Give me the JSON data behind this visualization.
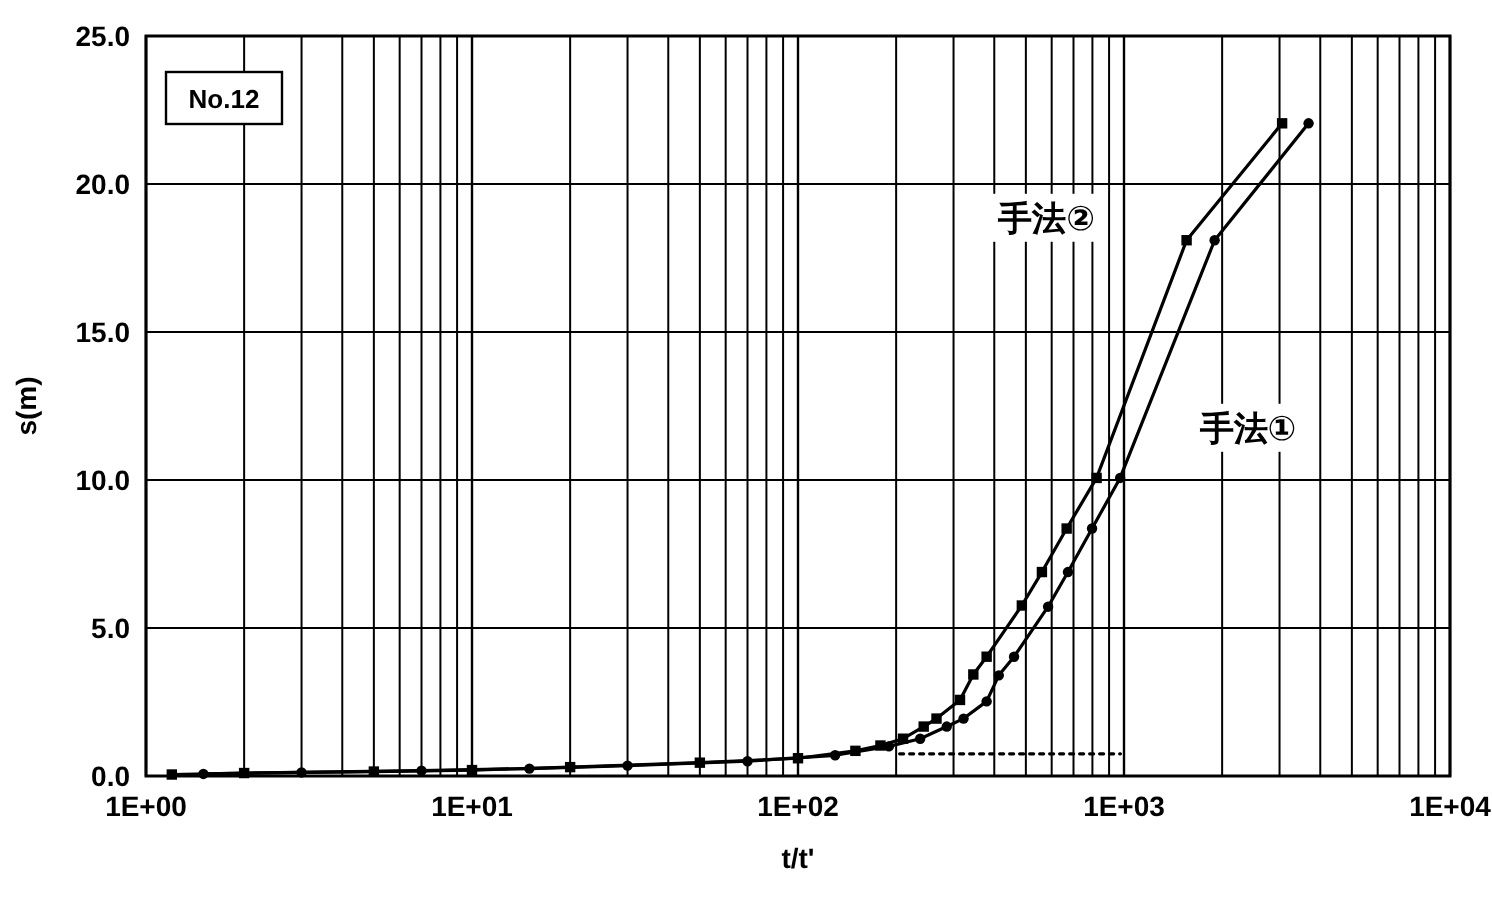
{
  "chart_data": {
    "type": "line",
    "xlabel": "t/t'",
    "ylabel": "s(m)",
    "log": "x",
    "grid": true,
    "xlim": [
      1,
      10000
    ],
    "ylim": [
      0,
      25
    ],
    "xticks": [
      {
        "value": 1,
        "label": "1E+00"
      },
      {
        "value": 2,
        "label": null
      },
      {
        "value": 3,
        "label": null
      },
      {
        "value": 4,
        "label": null
      },
      {
        "value": 5,
        "label": null
      },
      {
        "value": 6,
        "label": null
      },
      {
        "value": 7,
        "label": null
      },
      {
        "value": 8,
        "label": null
      },
      {
        "value": 9,
        "label": null
      },
      {
        "value": 10,
        "label": "1E+01"
      },
      {
        "value": 20,
        "label": null
      },
      {
        "value": 30,
        "label": null
      },
      {
        "value": 40,
        "label": null
      },
      {
        "value": 50,
        "label": null
      },
      {
        "value": 60,
        "label": null
      },
      {
        "value": 70,
        "label": null
      },
      {
        "value": 80,
        "label": null
      },
      {
        "value": 90,
        "label": null
      },
      {
        "value": 100,
        "label": "1E+02"
      },
      {
        "value": 200,
        "label": null
      },
      {
        "value": 300,
        "label": null
      },
      {
        "value": 400,
        "label": null
      },
      {
        "value": 500,
        "label": null
      },
      {
        "value": 600,
        "label": null
      },
      {
        "value": 700,
        "label": null
      },
      {
        "value": 800,
        "label": null
      },
      {
        "value": 900,
        "label": null
      },
      {
        "value": 1000,
        "label": "1E+03"
      },
      {
        "value": 2000,
        "label": null
      },
      {
        "value": 3000,
        "label": null
      },
      {
        "value": 4000,
        "label": null
      },
      {
        "value": 5000,
        "label": null
      },
      {
        "value": 6000,
        "label": null
      },
      {
        "value": 7000,
        "label": null
      },
      {
        "value": 8000,
        "label": null
      },
      {
        "value": 9000,
        "label": null
      },
      {
        "value": 10000,
        "label": "1E+04"
      }
    ],
    "yticks": [
      {
        "value": 0,
        "label": "0.0"
      },
      {
        "value": 5,
        "label": "5.0"
      },
      {
        "value": 10,
        "label": "10.0"
      },
      {
        "value": 15,
        "label": "15.0"
      },
      {
        "value": 20,
        "label": "20.0"
      },
      {
        "value": 25,
        "label": "25.0"
      }
    ],
    "annotations": [
      "No.12"
    ],
    "series": [
      {
        "name": "手法①",
        "color": "#000000",
        "marker": "circle",
        "x": [
          1.5,
          3,
          7,
          15,
          30,
          70,
          130,
          190,
          237,
          286,
          322,
          379,
          413,
          460,
          585,
          673,
          798,
          973,
          1897,
          3683
        ],
        "values": [
          0.07,
          0.12,
          0.18,
          0.25,
          0.35,
          0.5,
          0.7,
          1.0,
          1.26,
          1.67,
          1.94,
          2.52,
          3.4,
          4.03,
          5.72,
          6.89,
          8.36,
          10.07,
          18.1,
          22.05
        ]
      },
      {
        "name": "手法②",
        "color": "#000000",
        "marker": "square",
        "x": [
          1.2,
          2,
          5,
          10,
          20,
          50,
          100,
          150,
          179,
          210,
          243,
          266,
          314,
          345,
          379,
          486,
          560,
          667,
          824,
          1556,
          3055
        ],
        "values": [
          0.05,
          0.1,
          0.15,
          0.2,
          0.3,
          0.45,
          0.6,
          0.85,
          1.03,
          1.26,
          1.67,
          1.94,
          2.57,
          3.43,
          4.03,
          5.76,
          6.89,
          8.36,
          10.07,
          18.1,
          22.05
        ]
      },
      {
        "color": "#000000",
        "marker": "none",
        "line_style": "dotted",
        "x": [
          205,
          975
        ],
        "values": [
          0.75,
          0.75
        ]
      }
    ]
  }
}
